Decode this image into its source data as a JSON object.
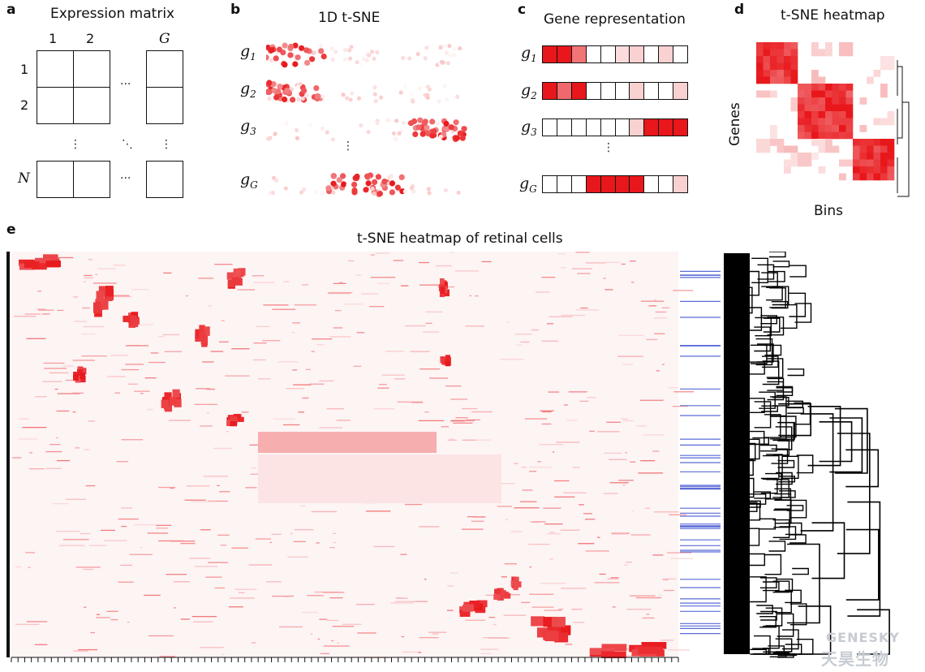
{
  "panel_a": {
    "letter": "a",
    "title": "Expression matrix",
    "col_labels": [
      "1",
      "2",
      "G"
    ],
    "row_labels": [
      "1",
      "2",
      "N"
    ]
  },
  "panel_b": {
    "letter": "b",
    "title": "1D t-SNE",
    "genes": [
      {
        "base": "g",
        "sub": "1",
        "cluster_span": [
          0.0,
          0.3
        ]
      },
      {
        "base": "g",
        "sub": "2",
        "cluster_span": [
          0.0,
          0.3
        ]
      },
      {
        "base": "g",
        "sub": "3",
        "cluster_span": [
          0.72,
          1.0
        ]
      },
      {
        "base": "g",
        "sub": "G",
        "cluster_span": [
          0.3,
          0.7
        ]
      }
    ]
  },
  "panel_c": {
    "letter": "c",
    "title": "Gene representation",
    "genes": [
      {
        "base": "g",
        "sub": "1",
        "levels": [
          1,
          1,
          0.6,
          0,
          0,
          0.15,
          0.2,
          0,
          0.2,
          0
        ]
      },
      {
        "base": "g",
        "sub": "2",
        "levels": [
          1,
          0.65,
          1,
          0,
          0,
          0,
          0.2,
          0,
          0,
          0.2
        ]
      },
      {
        "base": "g",
        "sub": "3",
        "levels": [
          0,
          0,
          0,
          0,
          0,
          0,
          0.2,
          1,
          1,
          1
        ]
      },
      {
        "base": "g",
        "sub": "G",
        "levels": [
          0,
          0,
          0,
          1,
          1,
          1,
          1,
          0,
          0,
          0.2
        ]
      }
    ]
  },
  "panel_d": {
    "letter": "d",
    "title": "t-SNE heatmap",
    "ylabel": "Genes",
    "xlabel": "Bins"
  },
  "panel_e": {
    "letter": "e",
    "title": "t-SNE heatmap of retinal cells"
  },
  "watermark": {
    "latin": "GENESKY",
    "cjk": "天昊生物"
  },
  "colors": {
    "red": "#e8161b",
    "pink": "#f6c9c9",
    "blue": "#5b6cd6"
  }
}
